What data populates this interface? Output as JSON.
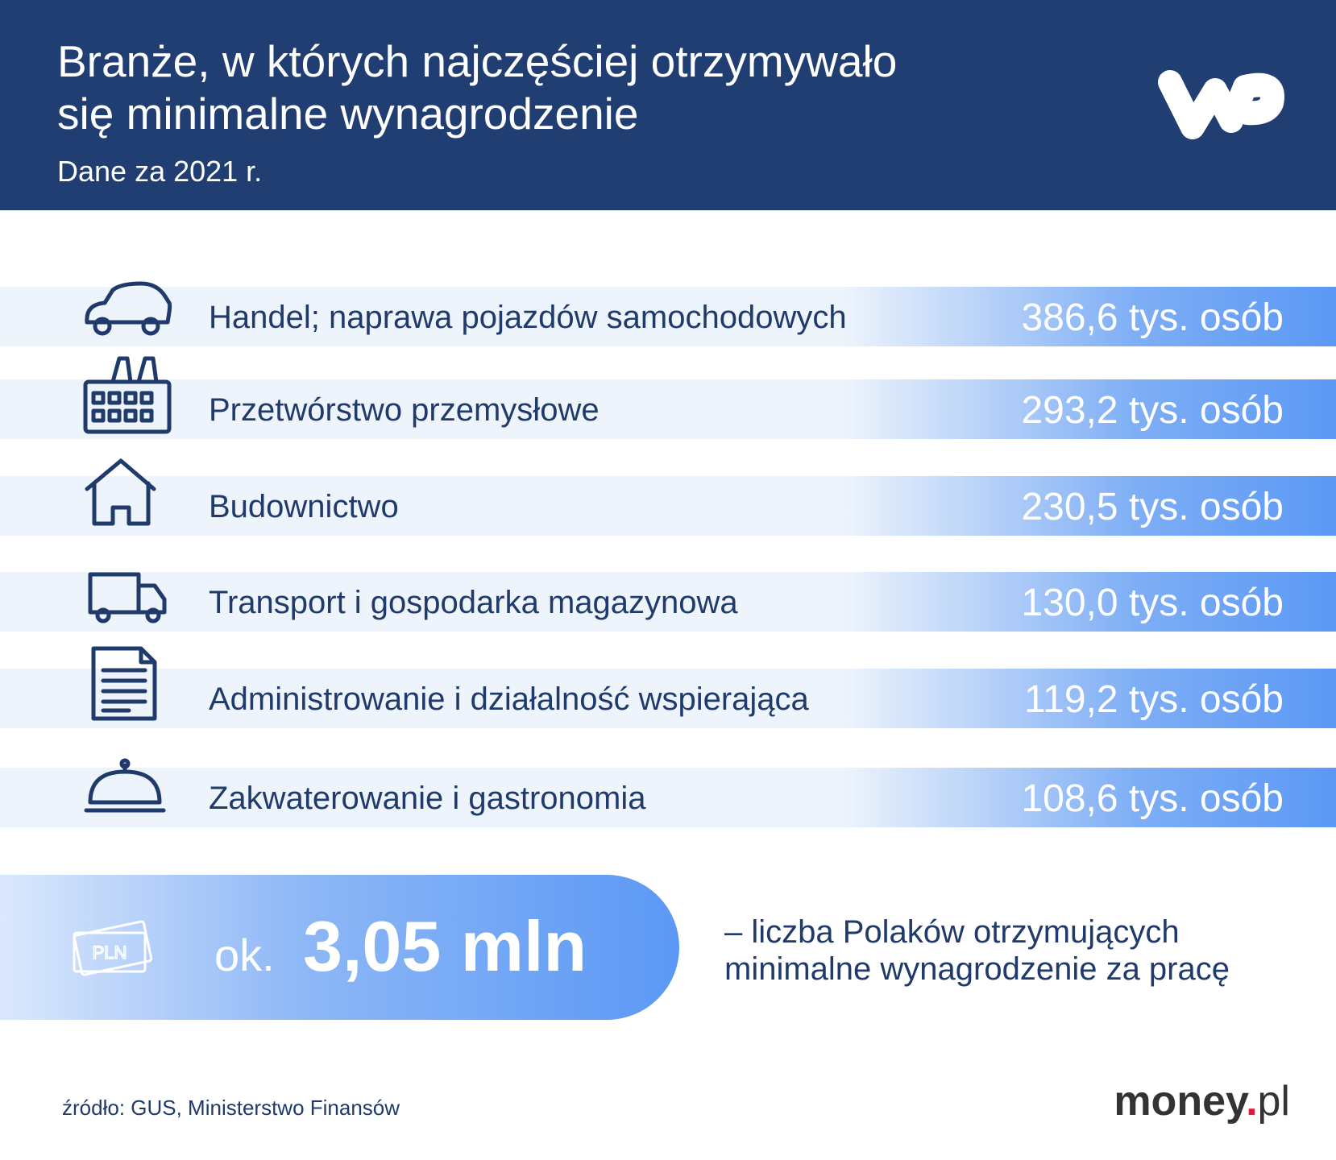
{
  "header": {
    "title_lines": [
      "Branże, w których najczęściej otrzymywało",
      "się minimalne wynagrodzenie"
    ],
    "subtitle": "Dane za 2021 r."
  },
  "rows": [
    {
      "label": "Handel; naprawa pojazdów samochodowych",
      "value": "386,6 tys. osób"
    },
    {
      "label": "Przetwórstwo przemysłowe",
      "value": "293,2 tys. osób"
    },
    {
      "label": "Budownictwo",
      "value": "230,5 tys. osób"
    },
    {
      "label": "Transport i gospodarka magazynowa",
      "value": "130,0 tys. osób"
    },
    {
      "label": "Administrowanie i działalność wspierająca",
      "value": "119,2 tys. osób"
    },
    {
      "label": "Zakwaterowanie i gastronomia",
      "value": "108,6 tys. osób"
    }
  ],
  "summary": {
    "badge": "PLN",
    "prefix": "ok.",
    "value": "3,05 mln",
    "description_lines": [
      "– liczba Polaków otrzymujących",
      "minimalne wynagrodzenie za pracę"
    ]
  },
  "footer": {
    "source": "źródło: GUS, Ministerstwo Finansów",
    "brand": {
      "name": "money",
      "dot": ".",
      "tld": "pl"
    }
  }
}
